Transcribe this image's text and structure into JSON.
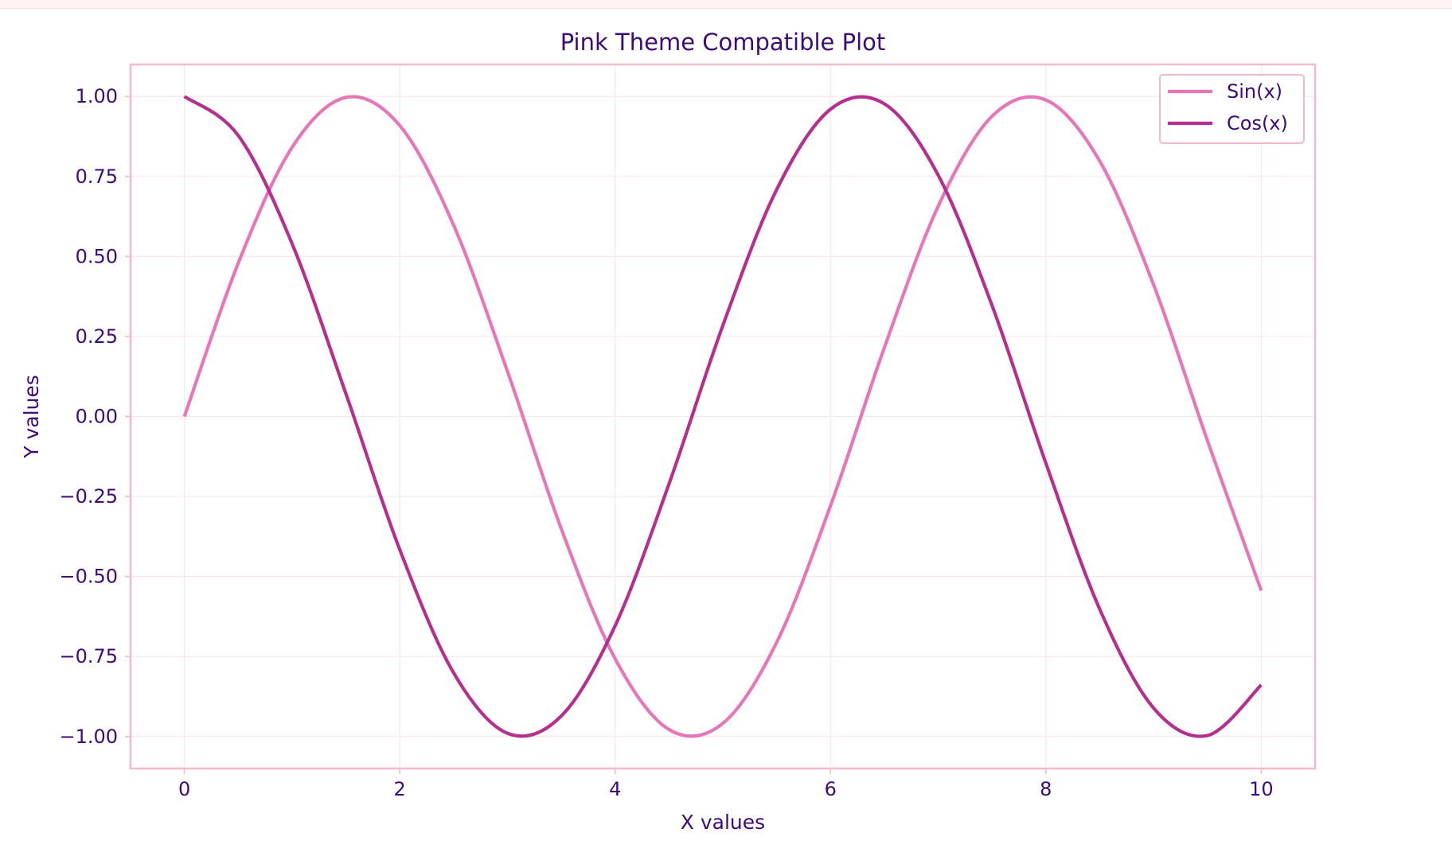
{
  "chart_data": {
    "type": "line",
    "title": "Pink Theme Compatible Plot",
    "xlabel": "X values",
    "ylabel": "Y values",
    "xlim": [
      -0.5,
      10.5
    ],
    "ylim": [
      -1.1,
      1.1
    ],
    "x_ticks": [
      0,
      2,
      4,
      6,
      8,
      10
    ],
    "x_tick_labels": [
      "0",
      "2",
      "4",
      "6",
      "8",
      "10"
    ],
    "y_ticks": [
      1.0,
      0.75,
      0.5,
      0.25,
      0.0,
      -0.25,
      -0.5,
      -0.75,
      -1.0
    ],
    "y_tick_labels": [
      "1.00",
      "0.75",
      "0.50",
      "0.25",
      "0.00",
      "−0.25",
      "−0.50",
      "−0.75",
      "−1.00"
    ],
    "grid": true,
    "legend_position": "top-right",
    "series": [
      {
        "name": "Sin(x)",
        "color": "#e776b9",
        "x": [
          0.0,
          0.5,
          1.0,
          1.5,
          2.0,
          2.5,
          3.0,
          3.5,
          4.0,
          4.5,
          5.0,
          5.5,
          6.0,
          6.5,
          7.0,
          7.5,
          8.0,
          8.5,
          9.0,
          9.5,
          10.0
        ],
        "y": [
          0.0,
          0.479,
          0.841,
          0.997,
          0.909,
          0.598,
          0.141,
          -0.351,
          -0.757,
          -0.978,
          -0.959,
          -0.706,
          -0.279,
          0.215,
          0.657,
          0.938,
          0.989,
          0.798,
          0.412,
          -0.075,
          -0.544
        ]
      },
      {
        "name": "Cos(x)",
        "color": "#b5308e",
        "x": [
          0.0,
          0.5,
          1.0,
          1.5,
          2.0,
          2.5,
          3.0,
          3.5,
          4.0,
          4.5,
          5.0,
          5.5,
          6.0,
          6.5,
          7.0,
          7.5,
          8.0,
          8.5,
          9.0,
          9.5,
          10.0
        ],
        "y": [
          1.0,
          0.878,
          0.54,
          0.071,
          -0.416,
          -0.801,
          -0.99,
          -0.936,
          -0.654,
          -0.211,
          0.284,
          0.709,
          0.96,
          0.977,
          0.754,
          0.347,
          -0.146,
          -0.602,
          -0.911,
          -0.997,
          -0.839
        ]
      }
    ],
    "colors": {
      "text": "#3d0a7a",
      "axes_border": "#f4b8cb",
      "grid": "#fbe6ee",
      "legend_border": "#f4b8cb"
    }
  }
}
